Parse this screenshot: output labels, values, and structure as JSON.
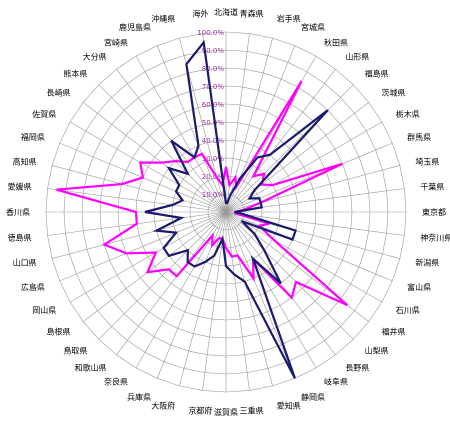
{
  "chart_data": {
    "type": "radar",
    "title": "",
    "categories": [
      "北海道",
      "青森県",
      "岩手県",
      "宮城県",
      "秋田県",
      "山形県",
      "福島県",
      "茨城県",
      "栃木県",
      "群馬県",
      "埼玉県",
      "千葉県",
      "東京都",
      "神奈川県",
      "新潟県",
      "富山県",
      "石川県",
      "福井県",
      "山梨県",
      "長野県",
      "岐阜県",
      "静岡県",
      "愛知県",
      "三重県",
      "滋賀県",
      "京都府",
      "大阪府",
      "兵庫県",
      "奈良県",
      "和歌山県",
      "鳥取県",
      "島根県",
      "岡山県",
      "広島県",
      "山口県",
      "徳島県",
      "香川県",
      "愛媛県",
      "高知県",
      "福岡県",
      "佐賀県",
      "長崎県",
      "熊本県",
      "大分県",
      "宮崎県",
      "鹿児島県",
      "沖縄県",
      "海外"
    ],
    "rlim": [
      0,
      100
    ],
    "ticks": [
      "10.0%",
      "20.0%",
      "30.0%",
      "40.0%",
      "50.0%",
      "60.0%",
      "70.0%",
      "80.0%",
      "90.0%",
      "100.0%"
    ],
    "series": [
      {
        "color": "#ff00ff",
        "values": [
          25,
          15,
          20,
          15,
          84,
          25,
          30,
          25,
          30,
          70,
          20,
          10,
          5,
          5,
          25,
          20,
          30,
          85,
          55,
          60,
          30,
          40,
          25,
          25,
          20,
          15,
          15,
          20,
          15,
          45,
          45,
          55,
          45,
          60,
          70,
          50,
          50,
          95,
          60,
          50,
          55,
          45,
          40,
          35,
          35,
          35,
          20,
          15
        ]
      },
      {
        "color": "#1a1a6e",
        "values": [
          5,
          5,
          10,
          20,
          35,
          40,
          80,
          20,
          15,
          20,
          20,
          20,
          5,
          10,
          40,
          40,
          10,
          20,
          30,
          50,
          30,
          100,
          40,
          35,
          30,
          15,
          25,
          30,
          35,
          35,
          30,
          40,
          40,
          30,
          40,
          25,
          45,
          30,
          25,
          30,
          30,
          40,
          30,
          50,
          35,
          40,
          85,
          95
        ]
      }
    ]
  }
}
